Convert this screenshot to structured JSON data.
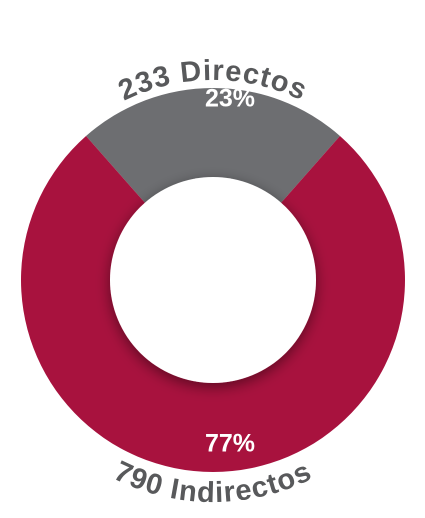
{
  "chart_data": {
    "type": "donut",
    "categories": [
      "233 Directos",
      "790 Indirectos"
    ],
    "values": [
      23,
      77
    ],
    "value_labels": [
      "23%",
      "77%"
    ],
    "colors": [
      "#6d6e71",
      "#a8123e"
    ]
  }
}
